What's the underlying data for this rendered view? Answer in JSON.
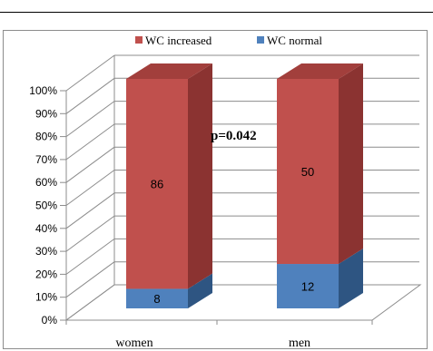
{
  "chart_data": {
    "type": "bar",
    "stacked": true,
    "percent_scale": true,
    "categories": [
      "women",
      "men"
    ],
    "series": [
      {
        "name": "WC normal",
        "values": [
          8,
          12
        ],
        "color": "#4f81bd"
      },
      {
        "name": "WC increased",
        "values": [
          86,
          50
        ],
        "color": "#c0504d"
      }
    ],
    "yticks": [
      "0%",
      "10%",
      "20%",
      "30%",
      "40%",
      "50%",
      "60%",
      "70%",
      "80%",
      "90%",
      "100%"
    ],
    "ylim": [
      0,
      100
    ],
    "grid": true,
    "legend": "top",
    "annotation": "p=0.042",
    "colors": {
      "wc_increased_front": "#c0504d",
      "wc_increased_side": "#8b3331",
      "wc_increased_top": "#a23f3c",
      "wc_normal_front": "#4f81bd",
      "wc_normal_side": "#2e5582",
      "wc_normal_top": "#3d6aa0",
      "grid": "#8c8c8c"
    }
  }
}
